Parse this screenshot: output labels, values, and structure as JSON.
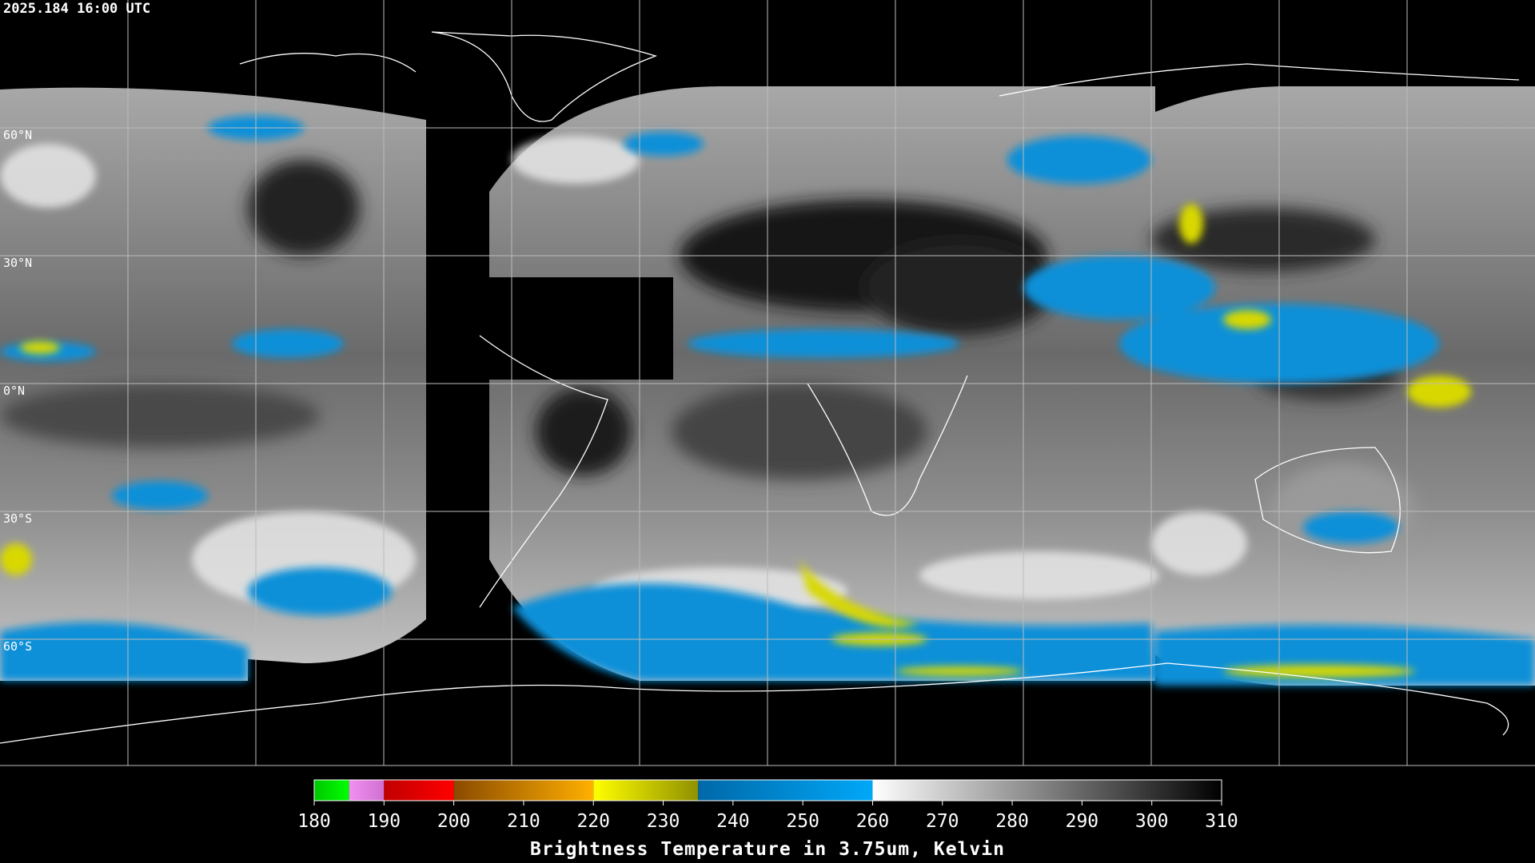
{
  "header": {
    "timestamp": "2025.184 16:00 UTC"
  },
  "map": {
    "lat_labels": [
      "60°N",
      "30°N",
      "0°N",
      "30°S",
      "60°S"
    ]
  },
  "colorbar": {
    "title": "Brightness Temperature in 3.75um, Kelvin",
    "range": [
      180,
      310
    ],
    "ticks": [
      180,
      190,
      200,
      210,
      220,
      230,
      240,
      250,
      260,
      270,
      280,
      290,
      300,
      310
    ],
    "segments": [
      {
        "from": 180,
        "to": 185,
        "colors": [
          "#00c800",
          "#00ff00"
        ]
      },
      {
        "from": 185,
        "to": 190,
        "colors": [
          "#f090f0",
          "#d070d0"
        ]
      },
      {
        "from": 190,
        "to": 200,
        "colors": [
          "#c00000",
          "#ff0000"
        ]
      },
      {
        "from": 200,
        "to": 220,
        "colors": [
          "#8a4a00",
          "#ffb000"
        ]
      },
      {
        "from": 220,
        "to": 235,
        "colors": [
          "#ffff00",
          "#909000"
        ]
      },
      {
        "from": 235,
        "to": 260,
        "colors": [
          "#0068a8",
          "#00a8f8"
        ]
      },
      {
        "from": 260,
        "to": 310,
        "colors": [
          "#ffffff",
          "#000000"
        ]
      }
    ]
  }
}
